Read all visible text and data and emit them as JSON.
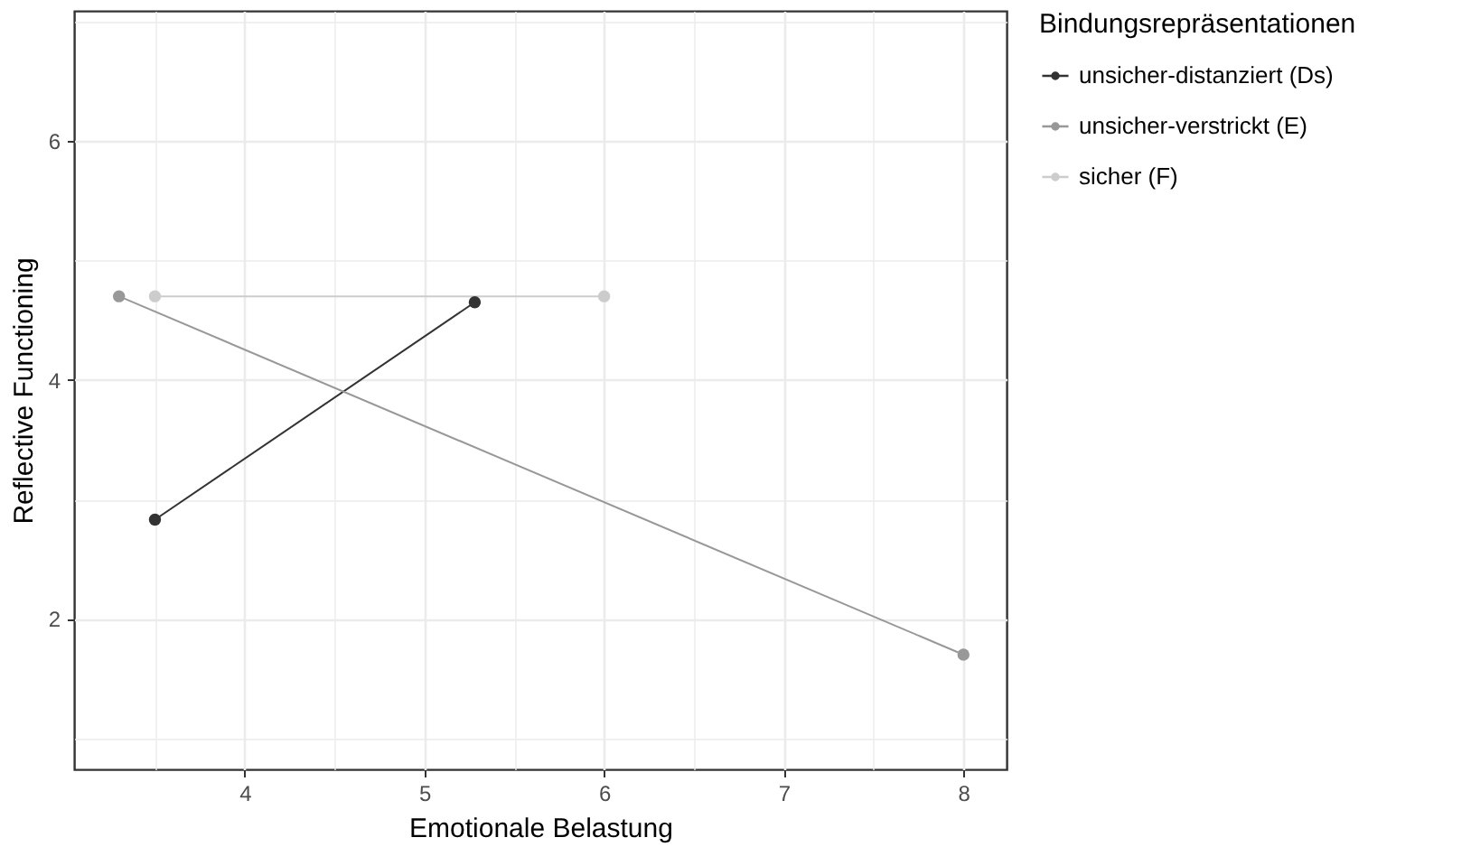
{
  "chart_data": {
    "type": "line",
    "xlabel": "Emotionale Belastung",
    "ylabel": "Reflective Functioning",
    "legend_title": "Bindungsrepräsentationen",
    "series": [
      {
        "name": "unsicher-distanziert (Ds)",
        "color": "#333333",
        "x": [
          3.5,
          5.28
        ],
        "values": [
          2.83,
          4.65
        ]
      },
      {
        "name": "unsicher-verstrickt (E)",
        "color": "#989898",
        "x": [
          3.3,
          8.0
        ],
        "values": [
          4.7,
          1.7
        ]
      },
      {
        "name": "sicher (F)",
        "color": "#cccccc",
        "x": [
          3.5,
          6.0
        ],
        "values": [
          4.7,
          4.7
        ]
      }
    ],
    "xlim": [
      3.05,
      8.24
    ],
    "ylim": [
      0.74,
      7.09
    ],
    "xticks": [
      {
        "value": 3.5,
        "label": null
      },
      4,
      {
        "value": 4.5,
        "label": null
      },
      5,
      {
        "value": 5.5,
        "label": null
      },
      6,
      {
        "value": 6.5,
        "label": null
      },
      7,
      {
        "value": 7.5,
        "label": null
      },
      8
    ],
    "yticks": [
      {
        "value": 1,
        "label": null
      },
      2,
      {
        "value": 3,
        "label": null
      },
      4,
      {
        "value": 5,
        "label": null
      },
      6,
      {
        "value": 7,
        "label": null
      }
    ],
    "grid": true,
    "legend": "right",
    "marker": "circle",
    "line_style": "solid"
  }
}
